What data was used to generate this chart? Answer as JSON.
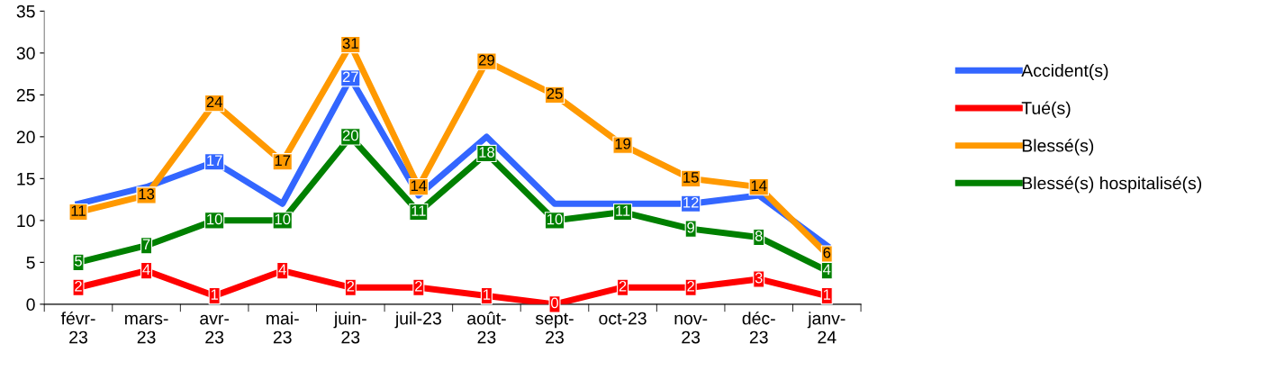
{
  "chart_data": {
    "type": "line",
    "categories": [
      "févr-\n23",
      "mars-\n23",
      "avr-\n23",
      "mai-\n23",
      "juin-\n23",
      "juil-23",
      "août-\n23",
      "sept-\n23",
      "oct-23",
      "nov-\n23",
      "déc-\n23",
      "janv-\n24"
    ],
    "series": [
      {
        "name": "Accident(s)",
        "color": "#3366ff",
        "values": [
          12,
          14,
          17,
          12,
          27,
          13,
          20,
          12,
          12,
          12,
          13,
          7
        ],
        "value_labels": [
          null,
          null,
          "17",
          null,
          "27",
          null,
          null,
          null,
          null,
          "12",
          null,
          null
        ]
      },
      {
        "name": "Tué(s)",
        "color": "#ff0000",
        "marker": "square",
        "values": [
          2,
          4,
          1,
          4,
          2,
          2,
          1,
          0,
          2,
          2,
          3,
          1
        ]
      },
      {
        "name": "Blessé(s)",
        "color": "#ff9900",
        "marker": "square",
        "values": [
          11,
          13,
          24,
          17,
          31,
          14,
          29,
          25,
          19,
          15,
          14,
          6
        ]
      },
      {
        "name": "Blessé(s) hospitalisé(s)",
        "color": "#008000",
        "marker": "square",
        "values": [
          5,
          7,
          10,
          10,
          20,
          11,
          18,
          10,
          11,
          9,
          8,
          4
        ]
      }
    ],
    "ylim": [
      0,
      35
    ],
    "yticks": [
      0,
      5,
      10,
      15,
      20,
      25,
      30,
      35
    ],
    "grid": false,
    "legend": "right",
    "data_labels": true,
    "line_style": "solid"
  }
}
